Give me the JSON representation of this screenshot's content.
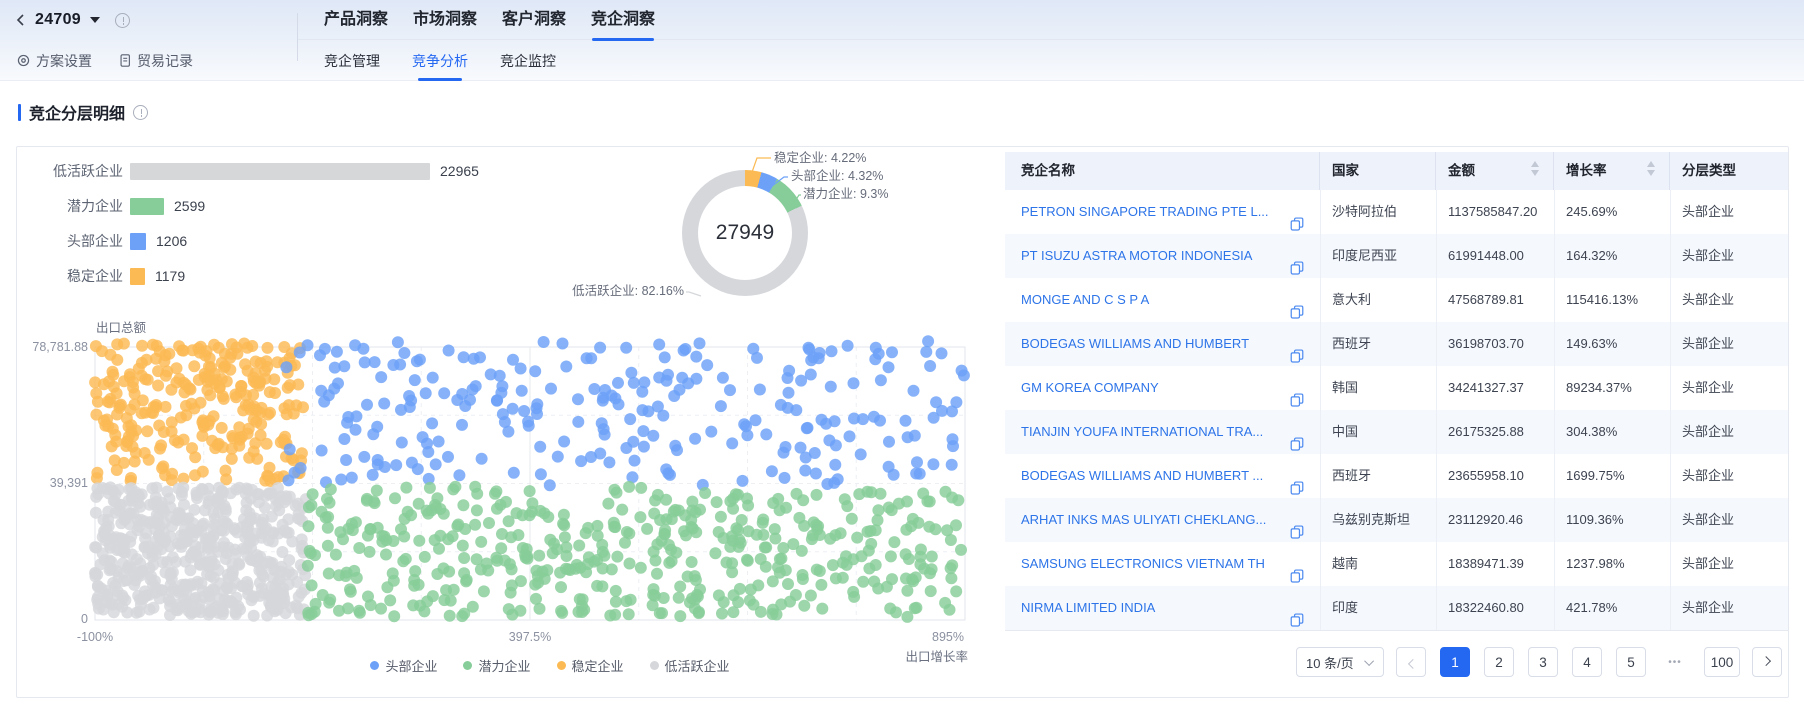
{
  "header": {
    "plan_id": "24709",
    "main_tabs": [
      {
        "key": "product-insights",
        "label": "产品洞察",
        "active": false
      },
      {
        "key": "market-insights",
        "label": "市场洞察",
        "active": false
      },
      {
        "key": "customer-insights",
        "label": "客户洞察",
        "active": false
      },
      {
        "key": "competitor-insights",
        "label": "竞企洞察",
        "active": true
      }
    ],
    "toolbar": [
      {
        "key": "plan-settings",
        "label": "方案设置",
        "icon": "gear-icon"
      },
      {
        "key": "trade-records",
        "label": "贸易记录",
        "icon": "document-icon"
      }
    ],
    "sub_tabs": [
      {
        "key": "competitor-management",
        "label": "竞企管理",
        "active": false
      },
      {
        "key": "competition-analysis",
        "label": "竞争分析",
        "active": true
      },
      {
        "key": "competitor-monitoring",
        "label": "竞企监控",
        "active": false
      }
    ]
  },
  "section": {
    "title": "竞企分层明细"
  },
  "colors": {
    "accent": "#2468F2",
    "link": "#2D74E8",
    "head": "#6DA1F8",
    "potential": "#87CD99",
    "stable": "#FBBA54",
    "low_active": "#D5D7DB"
  },
  "chart_data": [
    {
      "type": "bar",
      "orientation": "horizontal",
      "categories": [
        "低活跃企业",
        "潜力企业",
        "头部企业",
        "稳定企业"
      ],
      "values": [
        22965,
        2599,
        1206,
        1179
      ],
      "colors": [
        "#D6D7D9",
        "#87CD99",
        "#6DA1F8",
        "#FBBA54"
      ],
      "xlim": [
        0,
        22965
      ]
    },
    {
      "type": "pie",
      "total": "27949",
      "segments": [
        {
          "name": "稳定企业",
          "pct": 4.22,
          "color": "#FBBA54"
        },
        {
          "name": "头部企业",
          "pct": 4.32,
          "color": "#6DA1F8"
        },
        {
          "name": "潜力企业",
          "pct": 9.3,
          "color": "#87CD99"
        },
        {
          "name": "低活跃企业",
          "pct": 82.16,
          "color": "#D5D7DB"
        }
      ]
    },
    {
      "type": "scatter",
      "ylabel": "出口总额",
      "xlabel": "出口增长率",
      "xlim": [
        -100,
        895
      ],
      "ylim": [
        0,
        78781.88
      ],
      "grid": true,
      "x_ticks": [
        "-100%",
        "397.5%",
        "895%"
      ],
      "y_ticks": [
        "78,781.88",
        "39,391",
        "0"
      ],
      "legend": [
        {
          "name": "头部企业",
          "color": "#6DA1F8"
        },
        {
          "name": "潜力企业",
          "color": "#87CD99"
        },
        {
          "name": "稳定企业",
          "color": "#FBBA54"
        },
        {
          "name": "低活跃企业",
          "color": "#D5D7DB"
        }
      ],
      "regions": [
        {
          "name": "稳定企业",
          "color": "#FBBA54",
          "count": 280,
          "growth": [
            -100,
            138
          ],
          "amount": [
            40000,
            80000
          ]
        },
        {
          "name": "头部企业",
          "color": "#6DA1F8",
          "count": 258,
          "growth": [
            118,
            895
          ],
          "amount": [
            38800,
            80500
          ]
        },
        {
          "name": "低活跃企业",
          "color": "#D5D7DB",
          "count": 560,
          "growth": [
            -100,
            142
          ],
          "amount": [
            1200,
            38300
          ]
        },
        {
          "name": "潜力企业",
          "color": "#87CD99",
          "count": 480,
          "growth": [
            142,
            895
          ],
          "amount": [
            800,
            38600
          ]
        }
      ]
    }
  ],
  "table": {
    "columns": [
      {
        "key": "name",
        "label": "竞企名称",
        "sortable": false
      },
      {
        "key": "country",
        "label": "国家",
        "sortable": false
      },
      {
        "key": "amount",
        "label": "金额",
        "sortable": true
      },
      {
        "key": "growth",
        "label": "增长率",
        "sortable": true
      },
      {
        "key": "type",
        "label": "分层类型",
        "sortable": false
      }
    ],
    "rows": [
      {
        "name": "PETRON SINGAPORE TRADING PTE L...",
        "country": "沙特阿拉伯",
        "amount": "1137585847.20",
        "growth": "245.69%",
        "type": "头部企业"
      },
      {
        "name": "PT ISUZU ASTRA MOTOR INDONESIA",
        "country": "印度尼西亚",
        "amount": "61991448.00",
        "growth": "164.32%",
        "type": "头部企业"
      },
      {
        "name": "MONGE AND C S P A",
        "country": "意大利",
        "amount": "47568789.81",
        "growth": "115416.13%",
        "type": "头部企业"
      },
      {
        "name": "BODEGAS WILLIAMS AND HUMBERT",
        "country": "西班牙",
        "amount": "36198703.70",
        "growth": "149.63%",
        "type": "头部企业"
      },
      {
        "name": "GM KOREA COMPANY",
        "country": "韩国",
        "amount": "34241327.37",
        "growth": "89234.37%",
        "type": "头部企业"
      },
      {
        "name": "TIANJIN YOUFA INTERNATIONAL TRA...",
        "country": "中国",
        "amount": "26175325.88",
        "growth": "304.38%",
        "type": "头部企业"
      },
      {
        "name": "BODEGAS WILLIAMS AND HUMBERT ...",
        "country": "西班牙",
        "amount": "23655958.10",
        "growth": "1699.75%",
        "type": "头部企业"
      },
      {
        "name": "ARHAT INKS MAS ULIYATI CHEKLANG...",
        "country": "乌兹别克斯坦",
        "amount": "23112920.46",
        "growth": "1109.36%",
        "type": "头部企业"
      },
      {
        "name": "SAMSUNG ELECTRONICS VIETNAM TH",
        "country": "越南",
        "amount": "18389471.39",
        "growth": "1237.98%",
        "type": "头部企业"
      },
      {
        "name": "NIRMA LIMITED INDIA",
        "country": "印度",
        "amount": "18322460.80",
        "growth": "421.78%",
        "type": "头部企业"
      }
    ]
  },
  "pagination": {
    "per_page": "10 条/页",
    "pages": [
      "1",
      "2",
      "3",
      "4",
      "5"
    ],
    "ellipsis": "•••",
    "last_page": "100",
    "current": "1"
  }
}
